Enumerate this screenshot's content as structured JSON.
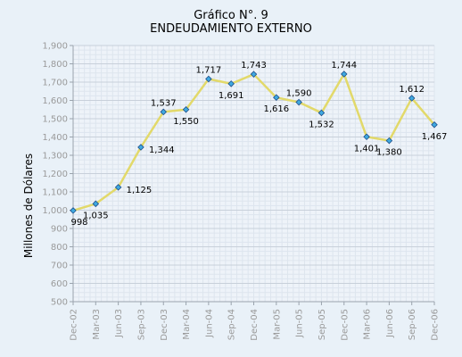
{
  "chart_data": {
    "type": "line",
    "title": "Gráfico N°. 9",
    "subtitle": "ENDEUDAMIENTO EXTERNO",
    "xlabel": "",
    "ylabel": "Millones de Dólares",
    "categories": [
      "Dec-02",
      "Mar-03",
      "Jun-03",
      "Sep-03",
      "Dec-03",
      "Mar-04",
      "Jun-04",
      "Sep-04",
      "Dec-04",
      "Mar-05",
      "Jun-05",
      "Sep-05",
      "Dec-05",
      "Mar-06",
      "Jun-06",
      "Sep-06",
      "Dec-06"
    ],
    "series": [
      {
        "values": [
          998,
          1035,
          1125,
          1344,
          1537,
          1550,
          1717,
          1691,
          1743,
          1616,
          1590,
          1532,
          1744,
          1401,
          1380,
          1612,
          1467
        ]
      }
    ],
    "data_labels": [
      "998",
      "1,035",
      "1,125",
      "1,344",
      "1,537",
      "1,550",
      "1,717",
      "1,691",
      "1,743",
      "1,616",
      "1,590",
      "1,532",
      "1,744",
      "1,401",
      "1,380",
      "1,612",
      "1,467"
    ],
    "y_tick_labels": [
      "500",
      "600",
      "700",
      "800",
      "900",
      "1,000",
      "1,100",
      "1,200",
      "1,300",
      "1,400",
      "1,500",
      "1,600",
      "1,700",
      "1,800",
      "1,900"
    ],
    "ylim": [
      500,
      1900
    ],
    "grid": true,
    "legend": "none",
    "colors": {
      "line": "#e2d96a",
      "marker_fill": "#3fa9e0",
      "marker_stroke": "#1f4f8a",
      "grid": "#c8d0da",
      "background": "#e9f1f8",
      "tick_text": "#9a9a9a"
    }
  }
}
